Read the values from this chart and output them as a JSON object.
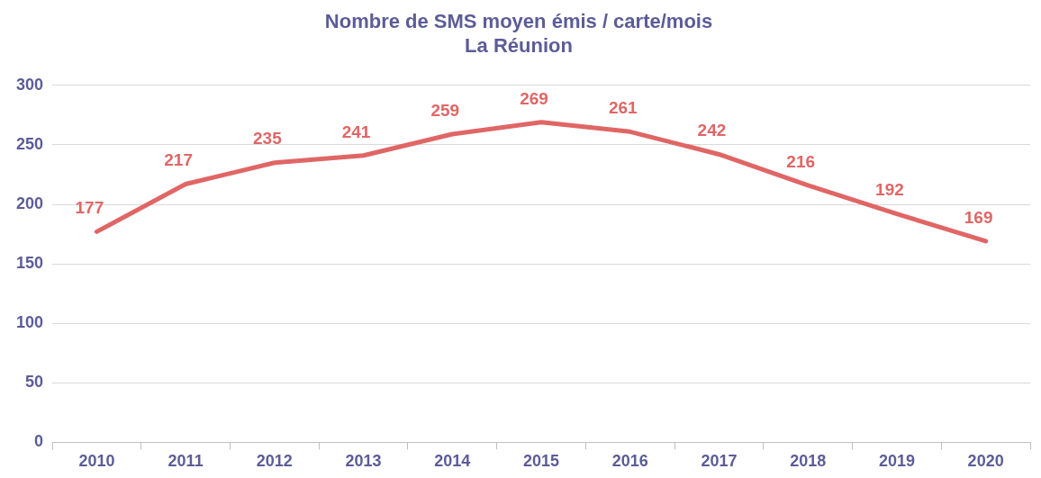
{
  "chart_data": {
    "type": "line",
    "title": "Nombre de SMS moyen émis / carte/mois",
    "subtitle": "La Réunion",
    "categories": [
      "2010",
      "2011",
      "2012",
      "2013",
      "2014",
      "2015",
      "2016",
      "2017",
      "2018",
      "2019",
      "2020"
    ],
    "series": [
      {
        "color": "#e06666",
        "values": [
          177,
          217,
          235,
          241,
          259,
          269,
          261,
          242,
          216,
          192,
          169
        ]
      }
    ],
    "ylim": [
      0,
      300
    ],
    "yticks": [
      0,
      50,
      100,
      150,
      200,
      250,
      300
    ],
    "grid": "y",
    "legend": false,
    "marker": "none",
    "line_style": "solid",
    "data_labels": true
  }
}
